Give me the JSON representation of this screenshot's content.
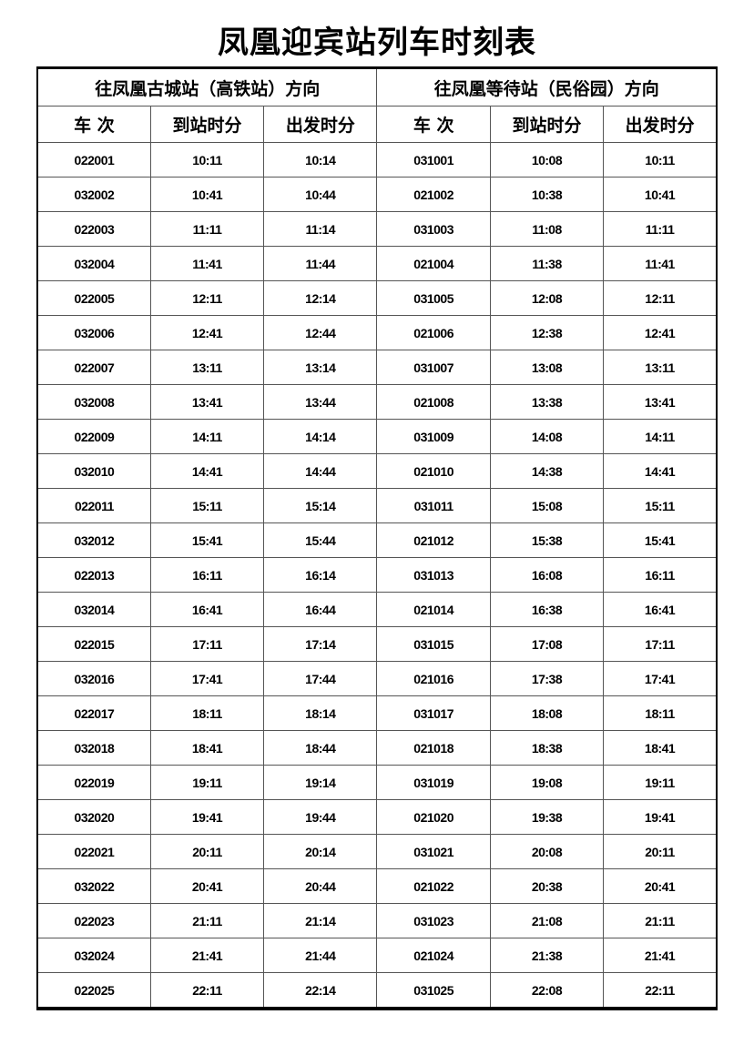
{
  "title": "凤凰迎宾站列车时刻表",
  "directions": [
    "往凤凰古城站（高铁站）方向",
    "往凤凰等待站（民俗园）方向"
  ],
  "columns": [
    "车 次",
    "到站时分",
    "出发时分",
    "车 次",
    "到站时分",
    "出发时分"
  ],
  "rows": [
    [
      "022001",
      "10:11",
      "10:14",
      "031001",
      "10:08",
      "10:11"
    ],
    [
      "032002",
      "10:41",
      "10:44",
      "021002",
      "10:38",
      "10:41"
    ],
    [
      "022003",
      "11:11",
      "11:14",
      "031003",
      "11:08",
      "11:11"
    ],
    [
      "032004",
      "11:41",
      "11:44",
      "021004",
      "11:38",
      "11:41"
    ],
    [
      "022005",
      "12:11",
      "12:14",
      "031005",
      "12:08",
      "12:11"
    ],
    [
      "032006",
      "12:41",
      "12:44",
      "021006",
      "12:38",
      "12:41"
    ],
    [
      "022007",
      "13:11",
      "13:14",
      "031007",
      "13:08",
      "13:11"
    ],
    [
      "032008",
      "13:41",
      "13:44",
      "021008",
      "13:38",
      "13:41"
    ],
    [
      "022009",
      "14:11",
      "14:14",
      "031009",
      "14:08",
      "14:11"
    ],
    [
      "032010",
      "14:41",
      "14:44",
      "021010",
      "14:38",
      "14:41"
    ],
    [
      "022011",
      "15:11",
      "15:14",
      "031011",
      "15:08",
      "15:11"
    ],
    [
      "032012",
      "15:41",
      "15:44",
      "021012",
      "15:38",
      "15:41"
    ],
    [
      "022013",
      "16:11",
      "16:14",
      "031013",
      "16:08",
      "16:11"
    ],
    [
      "032014",
      "16:41",
      "16:44",
      "021014",
      "16:38",
      "16:41"
    ],
    [
      "022015",
      "17:11",
      "17:14",
      "031015",
      "17:08",
      "17:11"
    ],
    [
      "032016",
      "17:41",
      "17:44",
      "021016",
      "17:38",
      "17:41"
    ],
    [
      "022017",
      "18:11",
      "18:14",
      "031017",
      "18:08",
      "18:11"
    ],
    [
      "032018",
      "18:41",
      "18:44",
      "021018",
      "18:38",
      "18:41"
    ],
    [
      "022019",
      "19:11",
      "19:14",
      "031019",
      "19:08",
      "19:11"
    ],
    [
      "032020",
      "19:41",
      "19:44",
      "021020",
      "19:38",
      "19:41"
    ],
    [
      "022021",
      "20:11",
      "20:14",
      "031021",
      "20:08",
      "20:11"
    ],
    [
      "032022",
      "20:41",
      "20:44",
      "021022",
      "20:38",
      "20:41"
    ],
    [
      "022023",
      "21:11",
      "21:14",
      "031023",
      "21:08",
      "21:11"
    ],
    [
      "032024",
      "21:41",
      "21:44",
      "021024",
      "21:38",
      "21:41"
    ],
    [
      "022025",
      "22:11",
      "22:14",
      "031025",
      "22:08",
      "22:11"
    ]
  ]
}
